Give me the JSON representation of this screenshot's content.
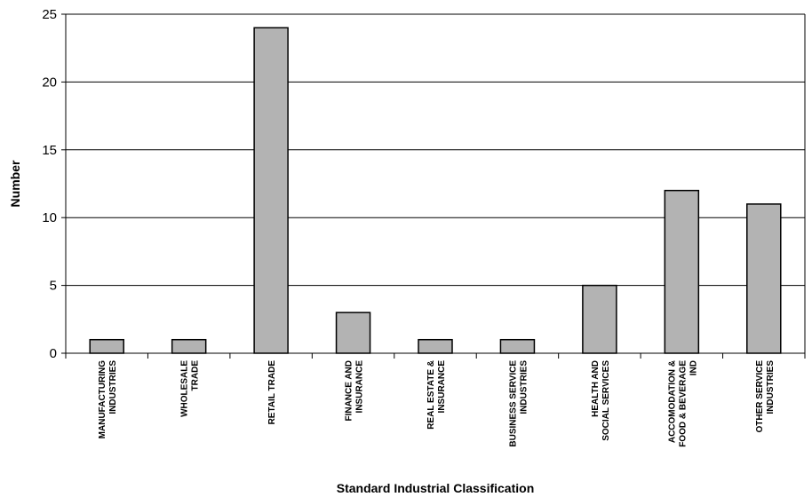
{
  "chart_data": {
    "type": "bar",
    "categories": [
      [
        "MANUFACTURING",
        "INDUSTRIES"
      ],
      [
        "WHOLESALE",
        "TRADE"
      ],
      [
        "RETAIL TRADE"
      ],
      [
        "FINANCE AND",
        "INSURANCE"
      ],
      [
        "REAL ESTATE &",
        "INSURANCE"
      ],
      [
        "BUSINESS SERVICE",
        "INDUSTRIES"
      ],
      [
        "HEALTH AND",
        "SOCIAL SERVICES"
      ],
      [
        "ACCOMODATION &",
        "FOOD & BEVERAGE",
        "IND"
      ],
      [
        "OTHER SERVICE",
        "INDUSTRIES"
      ]
    ],
    "values": [
      1,
      1,
      24,
      3,
      1,
      1,
      5,
      12,
      11
    ],
    "xlabel": "Standard Industrial Classification",
    "ylabel": "Number",
    "ylim": [
      0,
      25
    ],
    "yticks": [
      0,
      5,
      10,
      15,
      20,
      25
    ],
    "grid": true,
    "bar_color": "#b3b3b3",
    "bar_border_color": "#000000",
    "plot_background": "#ffffff"
  }
}
